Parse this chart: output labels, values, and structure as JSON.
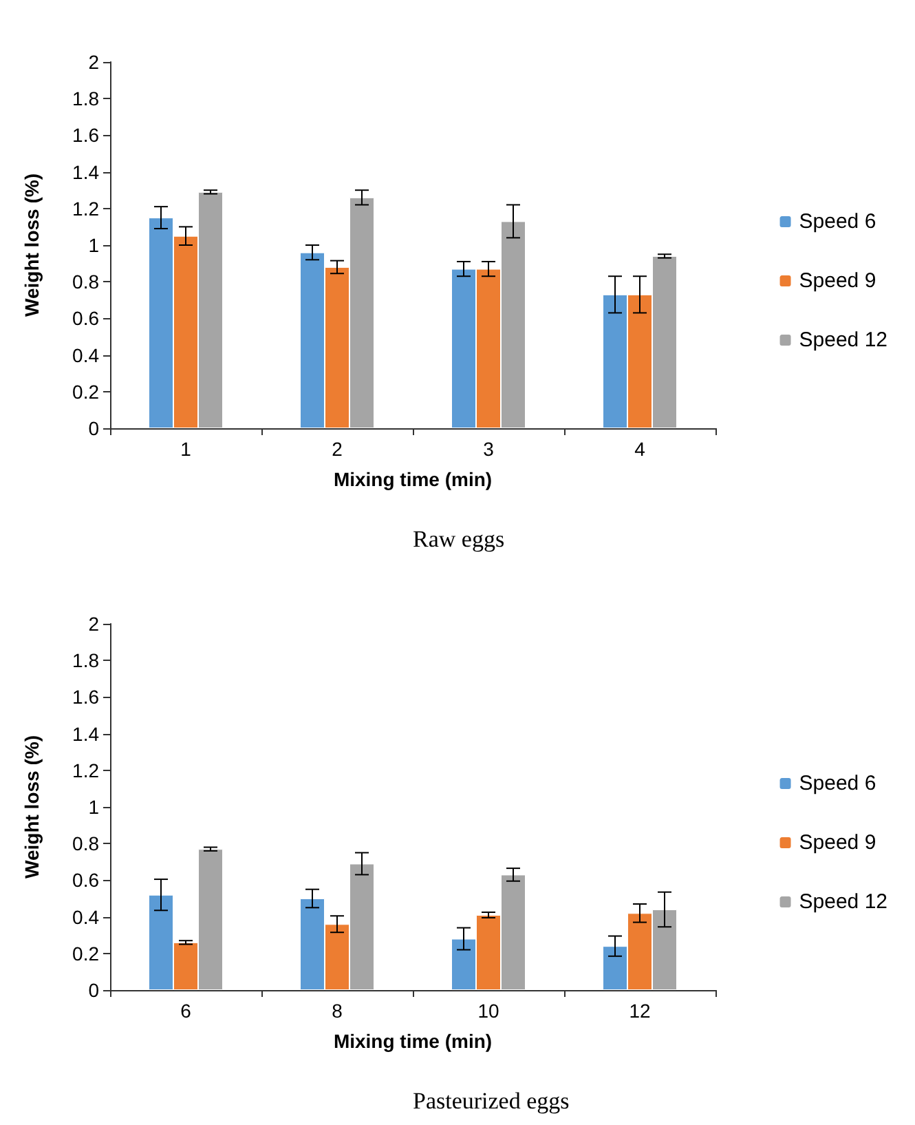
{
  "chart_data": [
    {
      "type": "bar",
      "xlabel": "Mixing time (min)",
      "ylabel": "Weight loss (%)",
      "annotations": [
        "Raw eggs"
      ],
      "categories": [
        "1",
        "2",
        "3",
        "4"
      ],
      "ylim": [
        0,
        2
      ],
      "yticks": [
        0,
        0.2,
        0.4,
        0.6,
        0.8,
        1,
        1.2,
        1.4,
        1.6,
        1.8,
        2
      ],
      "grid": false,
      "legend": "right",
      "series": [
        {
          "name": "Speed 6",
          "color": "#5b9bd5",
          "values": [
            1.15,
            0.96,
            0.87,
            0.73
          ],
          "errors": [
            0.06,
            0.04,
            0.04,
            0.1
          ]
        },
        {
          "name": "Speed 9",
          "color": "#ed7d31",
          "values": [
            1.05,
            0.88,
            0.87,
            0.73
          ],
          "errors": [
            0.05,
            0.035,
            0.04,
            0.1
          ]
        },
        {
          "name": "Speed 12",
          "color": "#a5a5a5",
          "values": [
            1.29,
            1.26,
            1.13,
            0.94
          ],
          "errors": [
            0.01,
            0.04,
            0.09,
            0.01
          ]
        }
      ]
    },
    {
      "type": "bar",
      "xlabel": "Mixing time (min)",
      "ylabel": "Weight loss (%)",
      "annotations": [
        "Pasteurized eggs"
      ],
      "categories": [
        "6",
        "8",
        "10",
        "12"
      ],
      "ylim": [
        0,
        2
      ],
      "yticks": [
        0,
        0.2,
        0.4,
        0.6,
        0.8,
        1,
        1.2,
        1.4,
        1.6,
        1.8,
        2
      ],
      "grid": false,
      "legend": "right",
      "series": [
        {
          "name": "Speed 6",
          "color": "#5b9bd5",
          "values": [
            0.52,
            0.5,
            0.28,
            0.24
          ],
          "errors": [
            0.085,
            0.05,
            0.06,
            0.055
          ]
        },
        {
          "name": "Speed 9",
          "color": "#ed7d31",
          "values": [
            0.26,
            0.36,
            0.41,
            0.42
          ],
          "errors": [
            0.01,
            0.045,
            0.015,
            0.05
          ]
        },
        {
          "name": "Speed 12",
          "color": "#a5a5a5",
          "values": [
            0.77,
            0.69,
            0.63,
            0.44
          ],
          "errors": [
            0.01,
            0.06,
            0.035,
            0.095
          ]
        }
      ]
    }
  ]
}
